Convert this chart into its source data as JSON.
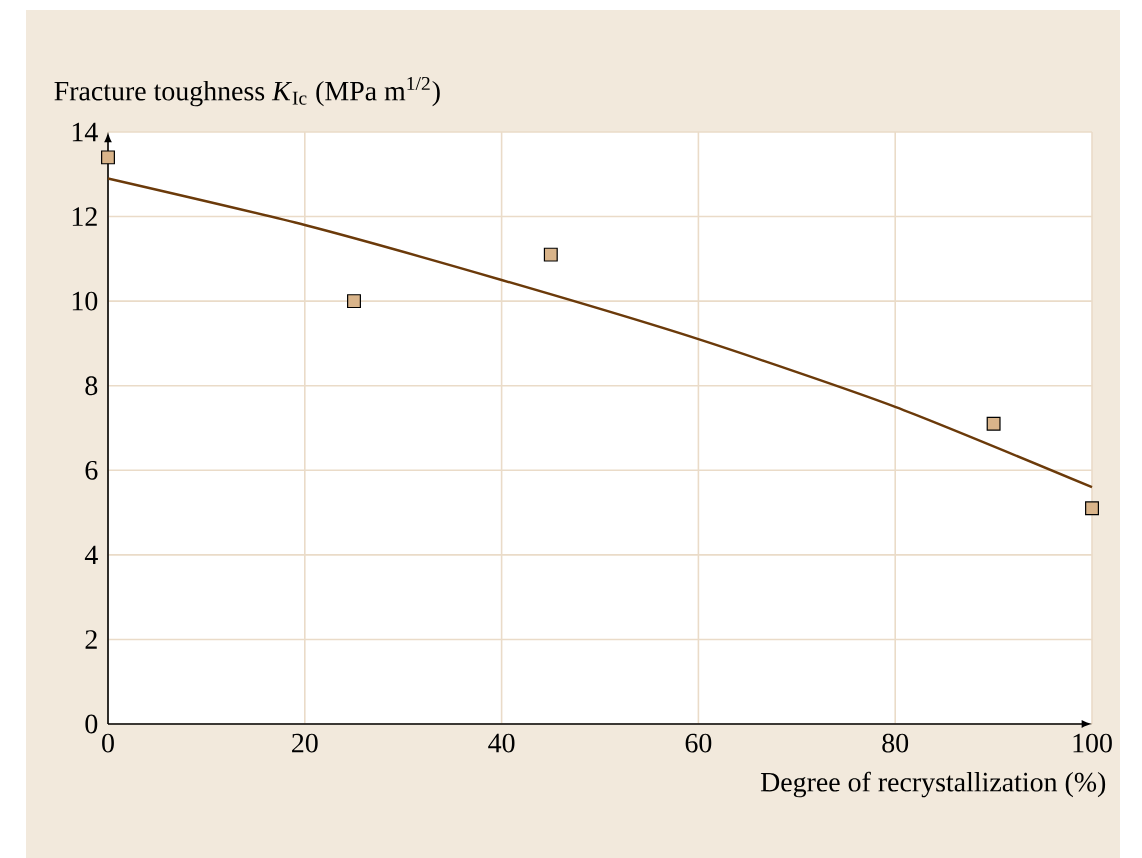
{
  "chart_data": {
    "type": "scatter",
    "xlabel": "Degree of recrystallization (%)",
    "ylabel": "Fracture toughness *K*$_{Ic}$ (MPa m$^{1/2}$)",
    "xlim": [
      0,
      100
    ],
    "ylim": [
      0,
      14
    ],
    "xticks": [
      0,
      20,
      40,
      60,
      80,
      100
    ],
    "yticks": [
      0,
      2,
      4,
      6,
      8,
      10,
      12,
      14
    ],
    "grid": true,
    "marker": "square",
    "series": [
      {
        "color": "#d9b48a",
        "x": [
          0,
          25,
          45,
          90,
          100
        ],
        "values": [
          13.4,
          10.0,
          11.1,
          7.1,
          5.1
        ]
      },
      {
        "type": "line",
        "color": "#6b3a0a",
        "line_style": "solid",
        "marker": "none",
        "x": [
          0,
          20,
          40,
          60,
          80,
          100
        ],
        "values": [
          12.9,
          11.8,
          10.5,
          9.1,
          7.5,
          5.6
        ]
      }
    ]
  }
}
